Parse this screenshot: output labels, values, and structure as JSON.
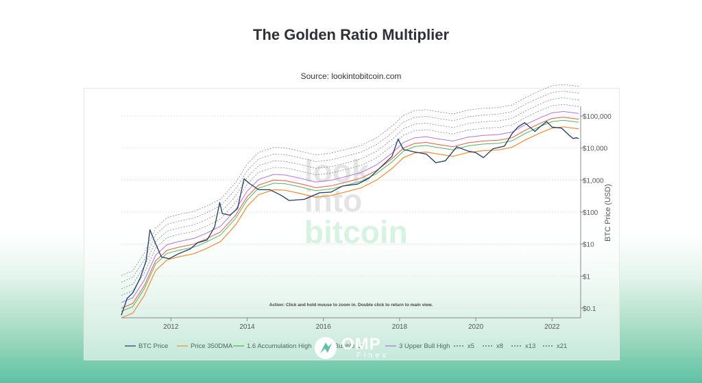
{
  "page": {
    "title": "The Golden Ratio Multiplier",
    "source": "Source: lookintobitcoin.com"
  },
  "watermark": {
    "line1": "look",
    "line2": "into",
    "line3": "bitcoin"
  },
  "action_hint": "Action: Click and hold mouse to zoom in.  Double click to return to main view.",
  "brand": {
    "name": "OMP",
    "sub": "Finex",
    "colors": {
      "bg": "#5fc2a3"
    }
  },
  "chart_data": {
    "type": "line",
    "title": "The Golden Ratio Multiplier",
    "ylabel": "BTC Price (USD)",
    "y_scale": "log",
    "ylim": [
      0.05,
      200000
    ],
    "xlim": [
      2010.7,
      2022.75
    ],
    "y_ticks": [
      0.1,
      1,
      10,
      100,
      1000,
      10000,
      100000
    ],
    "y_tick_labels": [
      "$0.1",
      "$1",
      "$10",
      "$100",
      "$1,000",
      "$10,000",
      "$100,000"
    ],
    "x_ticks": [
      2012,
      2014,
      2016,
      2018,
      2020,
      2022
    ],
    "x_tick_labels": [
      "2012",
      "2014",
      "2016",
      "2018",
      "2020",
      "2022"
    ],
    "legend_position": "bottom",
    "legend": [
      "BTC Price",
      "Price 350DMA",
      "1.6 Accumulation High",
      "2 Bubble Lo",
      "3 Upper Bull High",
      "x5",
      "x8",
      "x13",
      "x21"
    ],
    "colors": {
      "btc": "#1f3a63",
      "dma": "#f08a2c",
      "accum": "#4caf50",
      "bubble": "#e74c3c",
      "bull": "#b06bd6",
      "dashed": "#555555"
    },
    "btc": [
      [
        2010.7,
        0.06
      ],
      [
        2010.85,
        0.2
      ],
      [
        2011.0,
        0.3
      ],
      [
        2011.2,
        0.9
      ],
      [
        2011.35,
        3
      ],
      [
        2011.45,
        28
      ],
      [
        2011.55,
        14
      ],
      [
        2011.75,
        4
      ],
      [
        2011.95,
        3.5
      ],
      [
        2012.2,
        5
      ],
      [
        2012.5,
        7
      ],
      [
        2012.7,
        11
      ],
      [
        2012.95,
        13.5
      ],
      [
        2013.15,
        35
      ],
      [
        2013.28,
        200
      ],
      [
        2013.35,
        90
      ],
      [
        2013.55,
        80
      ],
      [
        2013.75,
        130
      ],
      [
        2013.92,
        1100
      ],
      [
        2014.05,
        800
      ],
      [
        2014.3,
        500
      ],
      [
        2014.6,
        500
      ],
      [
        2014.9,
        330
      ],
      [
        2015.1,
        230
      ],
      [
        2015.5,
        250
      ],
      [
        2015.9,
        400
      ],
      [
        2016.2,
        420
      ],
      [
        2016.5,
        650
      ],
      [
        2016.9,
        750
      ],
      [
        2017.2,
        1150
      ],
      [
        2017.5,
        2500
      ],
      [
        2017.8,
        5500
      ],
      [
        2017.96,
        19000
      ],
      [
        2018.1,
        9000
      ],
      [
        2018.4,
        7500
      ],
      [
        2018.7,
        6500
      ],
      [
        2018.95,
        3500
      ],
      [
        2019.2,
        4000
      ],
      [
        2019.5,
        11000
      ],
      [
        2019.8,
        8000
      ],
      [
        2020.0,
        7200
      ],
      [
        2020.2,
        5000
      ],
      [
        2020.45,
        9500
      ],
      [
        2020.75,
        11500
      ],
      [
        2020.95,
        28000
      ],
      [
        2021.1,
        45000
      ],
      [
        2021.28,
        62000
      ],
      [
        2021.55,
        33000
      ],
      [
        2021.7,
        48000
      ],
      [
        2021.86,
        67000
      ],
      [
        2022.0,
        45000
      ],
      [
        2022.25,
        42000
      ],
      [
        2022.45,
        25000
      ],
      [
        2022.55,
        20000
      ],
      [
        2022.65,
        21000
      ],
      [
        2022.7,
        19500
      ]
    ],
    "dma": [
      [
        2010.7,
        0.05
      ],
      [
        2011.0,
        0.07
      ],
      [
        2011.3,
        0.25
      ],
      [
        2011.6,
        1.5
      ],
      [
        2011.9,
        3.2
      ],
      [
        2012.2,
        4
      ],
      [
        2012.6,
        5
      ],
      [
        2012.9,
        7
      ],
      [
        2013.3,
        12
      ],
      [
        2013.7,
        40
      ],
      [
        2014.0,
        150
      ],
      [
        2014.3,
        350
      ],
      [
        2014.7,
        500
      ],
      [
        2015.0,
        480
      ],
      [
        2015.4,
        380
      ],
      [
        2015.8,
        290
      ],
      [
        2016.2,
        330
      ],
      [
        2016.6,
        430
      ],
      [
        2017.0,
        580
      ],
      [
        2017.4,
        1000
      ],
      [
        2017.8,
        2300
      ],
      [
        2018.1,
        5000
      ],
      [
        2018.4,
        7000
      ],
      [
        2018.7,
        7500
      ],
      [
        2019.0,
        6500
      ],
      [
        2019.4,
        5500
      ],
      [
        2019.8,
        7300
      ],
      [
        2020.2,
        8300
      ],
      [
        2020.6,
        8800
      ],
      [
        2020.95,
        10500
      ],
      [
        2021.3,
        18000
      ],
      [
        2021.7,
        30000
      ],
      [
        2022.0,
        42000
      ],
      [
        2022.3,
        46000
      ],
      [
        2022.7,
        40000
      ]
    ],
    "multipliers": [
      {
        "name": "1.6 Accumulation High",
        "factor": 1.6
      },
      {
        "name": "2 Bubble Lo",
        "factor": 2
      },
      {
        "name": "3 Upper Bull High",
        "factor": 3
      },
      {
        "name": "x5",
        "factor": 5
      },
      {
        "name": "x8",
        "factor": 8
      },
      {
        "name": "x13",
        "factor": 13
      },
      {
        "name": "x21",
        "factor": 21
      }
    ]
  }
}
